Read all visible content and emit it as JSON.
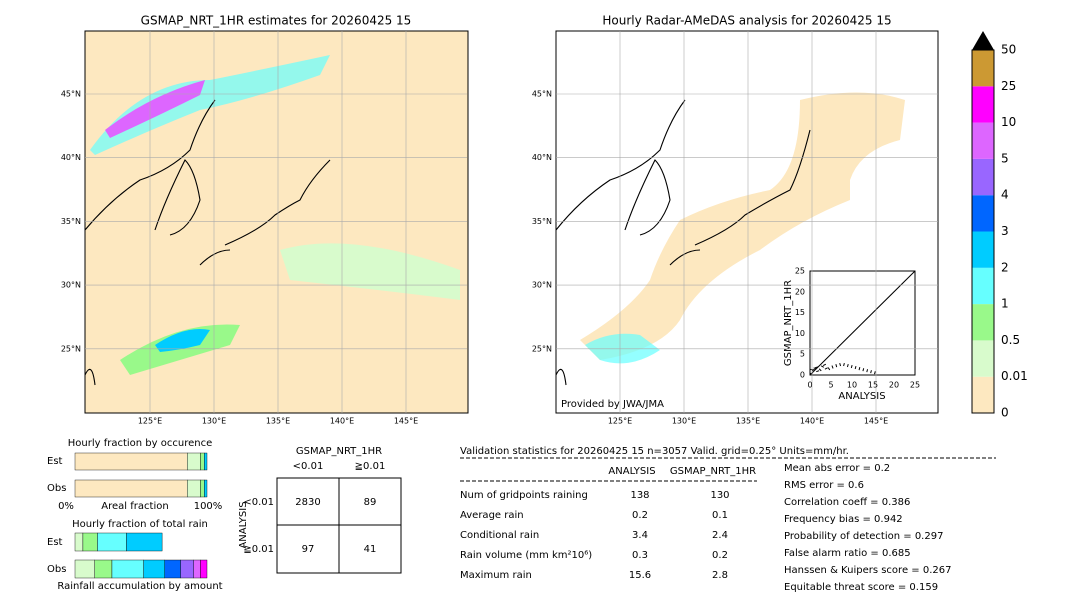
{
  "left_map": {
    "title": "GSMAP_NRT_1HR estimates for 20260425 15",
    "lat_labels": [
      "45°N",
      "40°N",
      "35°N",
      "30°N",
      "25°N"
    ],
    "lon_labels": [
      "125°E",
      "130°E",
      "135°E",
      "140°E",
      "145°E"
    ]
  },
  "right_map": {
    "title": "Hourly Radar-AMeDAS analysis for 20260425 15",
    "lat_labels": [
      "45°N",
      "40°N",
      "35°N",
      "30°N",
      "25°N"
    ],
    "lon_labels": [
      "125°E",
      "130°E",
      "135°E",
      "140°E",
      "145°E"
    ],
    "credit": "Provided by JWA/JMA"
  },
  "scatter": {
    "xlabel": "ANALYSIS",
    "ylabel": "GSMAP_NRT_1HR",
    "ticks": [
      "0",
      "5",
      "10",
      "15",
      "20",
      "25"
    ]
  },
  "colorbar": {
    "labels": [
      "0",
      "0.01",
      "0.5",
      "1",
      "2",
      "3",
      "4",
      "5",
      "10",
      "25",
      "50"
    ],
    "colors": [
      "#fde8c0",
      "#d8fbcc",
      "#99f98a",
      "#66ffff",
      "#00ccff",
      "#0066ff",
      "#9966ff",
      "#dd66ff",
      "#ff00ff",
      "#cc9933"
    ]
  },
  "occurrence": {
    "title": "Hourly fraction by occurence",
    "rows": [
      "Est",
      "Obs"
    ],
    "axis": [
      "0%",
      "Areal fraction",
      "100%"
    ]
  },
  "total": {
    "title": "Hourly fraction of total rain",
    "rows": [
      "Est",
      "Obs"
    ],
    "footer": "Rainfall accumulation by amount"
  },
  "contingency": {
    "title": "GSMAP_NRT_1HR",
    "cols": [
      "<0.01",
      "≧0.01"
    ],
    "row_axis": "ANALYSIS",
    "rows": [
      "<0.01",
      "≧0.01"
    ],
    "cells": [
      [
        "2830",
        "89"
      ],
      [
        "97",
        "41"
      ]
    ]
  },
  "validation": {
    "header": "Validation statistics for 20260425 15  n=3057 Valid. grid=0.25° Units=mm/hr.",
    "columns": [
      "ANALYSIS",
      "GSMAP_NRT_1HR"
    ],
    "rows": [
      [
        "Num of gridpoints raining",
        "138",
        "130"
      ],
      [
        "Average rain",
        "0.2",
        "0.1"
      ],
      [
        "Conditional rain",
        "3.4",
        "2.4"
      ],
      [
        "Rain volume (mm km²10⁶)",
        "0.3",
        "0.2"
      ],
      [
        "Maximum rain",
        "15.6",
        "2.8"
      ]
    ],
    "scores": [
      "Mean abs error =    0.2",
      "RMS error =    0.6",
      "Correlation coeff =  0.386",
      "Frequency bias =  0.942",
      "Probability of detection =  0.297",
      "False alarm ratio =  0.685",
      "Hanssen & Kuipers score =  0.267",
      "Equitable threat score =  0.159"
    ]
  }
}
